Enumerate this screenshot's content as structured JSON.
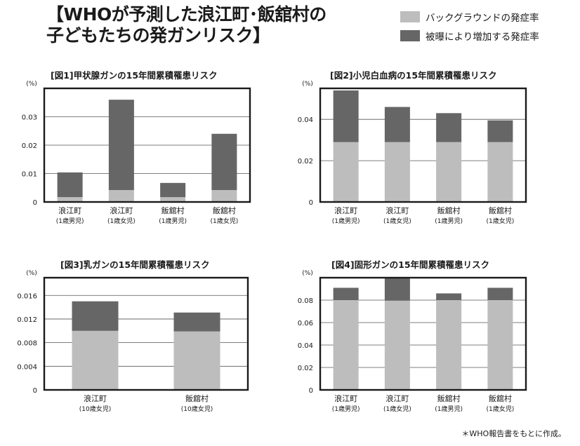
{
  "header": {
    "title_line1": "【WHOが予測した浪江町･飯舘村の",
    "title_line2": "子どもたちの発ガンリスク】"
  },
  "legend": [
    {
      "label": "バックグラウンドの発症率",
      "color": "#bdbdbd"
    },
    {
      "label": "被曝により増加する発症率",
      "color": "#666666"
    }
  ],
  "colors": {
    "background": "#bdbdbd",
    "exposure": "#666666",
    "frame": "#1a1a1a"
  },
  "chart_data": [
    {
      "type": "bar",
      "stacked": true,
      "title": "[図1]甲状腺ガンの15年間累積罹患リスク",
      "unit_label": "(%)",
      "ylim": [
        0,
        0.04
      ],
      "yticks": [
        "0",
        "0.01",
        "0.02",
        "0.03"
      ],
      "ytick_values": [
        0,
        0.01,
        0.02,
        0.03
      ],
      "grid": true,
      "categories": [
        {
          "name": "浪江町",
          "group": "(1歳男児)"
        },
        {
          "name": "浪江町",
          "group": "(1歳女児)"
        },
        {
          "name": "飯舘村",
          "group": "(1歳男児)"
        },
        {
          "name": "飯舘村",
          "group": "(1歳女児)"
        }
      ],
      "series": [
        {
          "values": [
            0.0017,
            0.0042,
            0.0017,
            0.0042
          ]
        },
        {
          "values": [
            0.0087,
            0.0318,
            0.005,
            0.0198
          ]
        }
      ]
    },
    {
      "type": "bar",
      "stacked": true,
      "title": "[図2]小児白血病の15年間累積罹患リスク",
      "unit_label": "(%)",
      "ylim": [
        0,
        0.055
      ],
      "yticks": [
        "0",
        "0.02",
        "0.04"
      ],
      "ytick_values": [
        0,
        0.02,
        0.04
      ],
      "grid": true,
      "categories": [
        {
          "name": "浪江町",
          "group": "(1歳男児)"
        },
        {
          "name": "浪江町",
          "group": "(1歳女児)"
        },
        {
          "name": "飯舘村",
          "group": "(1歳男児)"
        },
        {
          "name": "飯舘村",
          "group": "(1歳女児)"
        }
      ],
      "series": [
        {
          "values": [
            0.029,
            0.029,
            0.029,
            0.029
          ]
        },
        {
          "values": [
            0.025,
            0.017,
            0.014,
            0.0105
          ]
        }
      ]
    },
    {
      "type": "bar",
      "stacked": true,
      "title": "[図3]乳ガンの15年間累積罹患リスク",
      "unit_label": "(%)",
      "ylim": [
        0,
        0.019
      ],
      "yticks": [
        "0",
        "0.004",
        "0.008",
        "0.012",
        "0.016"
      ],
      "ytick_values": [
        0,
        0.004,
        0.008,
        0.012,
        0.016
      ],
      "grid": true,
      "categories": [
        {
          "name": "浪江町",
          "group": "(10歳女児)"
        },
        {
          "name": "飯舘村",
          "group": "(10歳女児)"
        }
      ],
      "series": [
        {
          "values": [
            0.01,
            0.0099
          ]
        },
        {
          "values": [
            0.005,
            0.0032
          ]
        }
      ]
    },
    {
      "type": "bar",
      "stacked": true,
      "title": "[図4]固形ガンの15年間累積罹患リスク",
      "unit_label": "(%)",
      "ylim": [
        0,
        0.1
      ],
      "yticks": [
        "0",
        "0.02",
        "0.04",
        "0.06",
        "0.08"
      ],
      "ytick_values": [
        0,
        0.02,
        0.04,
        0.06,
        0.08
      ],
      "grid": true,
      "categories": [
        {
          "name": "浪江町",
          "group": "(1歳男児)"
        },
        {
          "name": "浪江町",
          "group": "(1歳女児)"
        },
        {
          "name": "飯舘村",
          "group": "(1歳男児)"
        },
        {
          "name": "飯舘村",
          "group": "(1歳女児)"
        }
      ],
      "series": [
        {
          "values": [
            0.08,
            0.0795,
            0.08,
            0.08
          ]
        },
        {
          "values": [
            0.011,
            0.0205,
            0.006,
            0.011
          ]
        }
      ]
    }
  ],
  "footer": {
    "source": "＊WHO報告書をもとに作成。"
  }
}
